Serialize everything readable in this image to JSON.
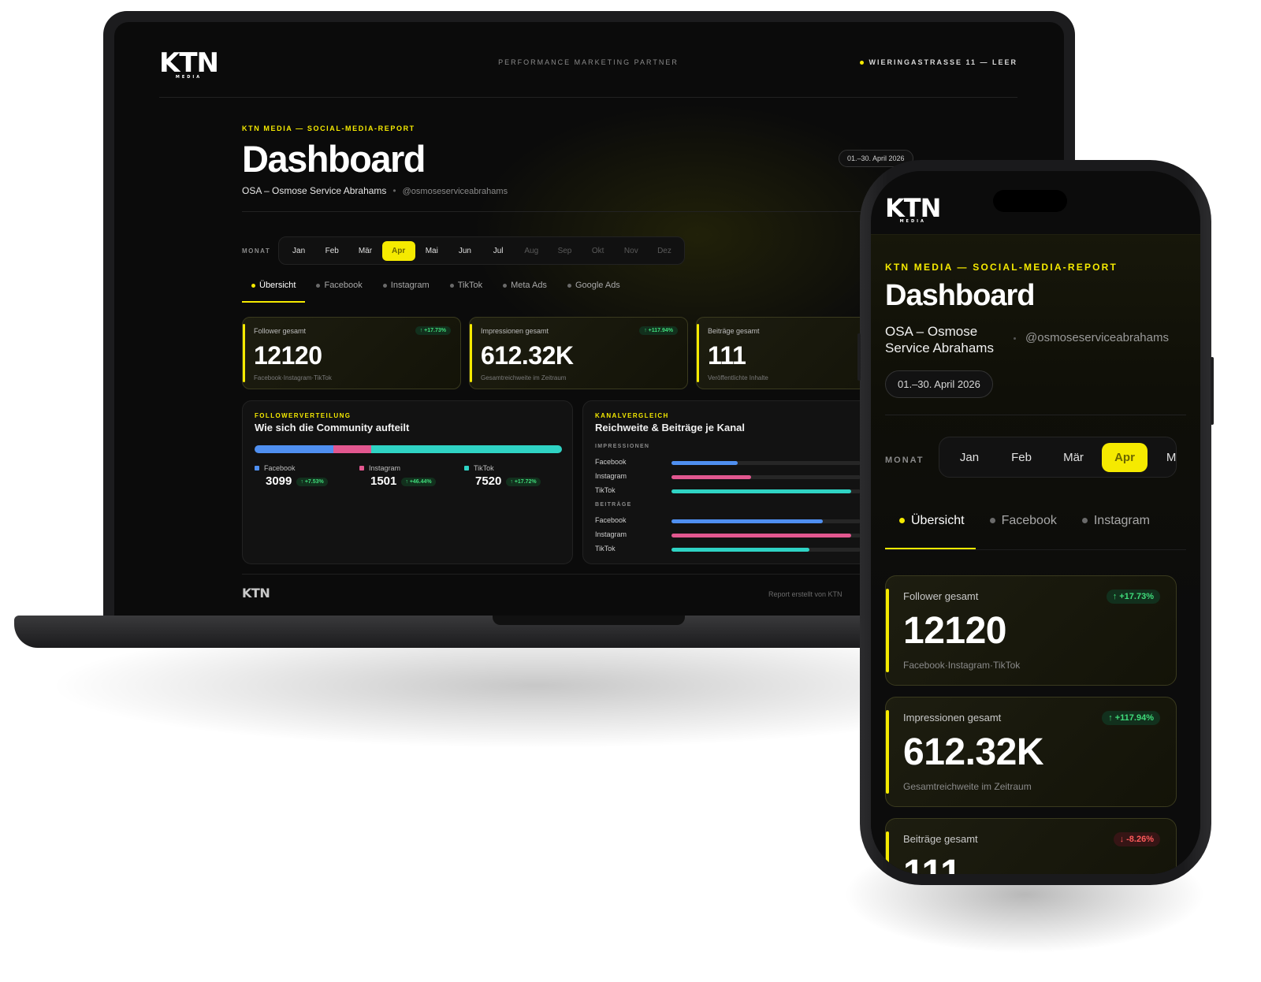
{
  "brand": {
    "logo": "KTN",
    "logo_sub": "MEDIA",
    "tagline": "PERFORMANCE MARKETING PARTNER",
    "address": "WIERINGASTRASSE 11 — LEER",
    "accent": "#f5ea00"
  },
  "report": {
    "kicker": "KTN MEDIA — SOCIAL-MEDIA-REPORT",
    "title": "Dashboard",
    "client": "OSA – Osmose Service Abrahams",
    "handle": "@osmoseserviceabrahams",
    "date_range": "01.–30. April 2026"
  },
  "months": {
    "label": "MONAT",
    "items": [
      "Jan",
      "Feb",
      "Mär",
      "Apr",
      "Mai",
      "Jun",
      "Jul",
      "Aug",
      "Sep",
      "Okt",
      "Nov",
      "Dez"
    ],
    "active": "Apr"
  },
  "tabs": [
    "Übersicht",
    "Facebook",
    "Instagram",
    "TikTok",
    "Meta Ads",
    "Google Ads"
  ],
  "kpis": [
    {
      "label": "Follower gesamt",
      "value": "12120",
      "change": "↑ +17.73%",
      "foot": "Facebook·Instagram·TikTok",
      "trend": "up"
    },
    {
      "label": "Impressionen gesamt",
      "value": "612.32K",
      "change": "↑ +117.94%",
      "foot": "Gesamtreichweite im Zeitraum",
      "trend": "up"
    },
    {
      "label": "Beiträge gesamt",
      "value": "111",
      "change": "↓ -8.26%",
      "foot": "Veröffentlichte Inhalte",
      "trend": "down"
    }
  ],
  "follower_distribution": {
    "kicker": "FOLLOWERVERTEILUNG",
    "title": "Wie sich die Community aufteilt",
    "items": [
      {
        "name": "Facebook",
        "value": "3099",
        "count": 3099,
        "change": "↑ +7.53%",
        "color": "#4f8ff0"
      },
      {
        "name": "Instagram",
        "value": "1501",
        "count": 1501,
        "change": "↑ +46.44%",
        "color": "#e2578f"
      },
      {
        "name": "TikTok",
        "value": "7520",
        "count": 7520,
        "change": "↑ +17.72%",
        "color": "#2fd3c4"
      }
    ]
  },
  "channel_comparison": {
    "kicker": "KANALVERGLEICH",
    "title": "Reichweite & Beiträge je Kanal",
    "sections": [
      {
        "label": "IMPRESSIONEN",
        "rows": [
          {
            "name": "Facebook",
            "share": 0.35,
            "color": "#4f8ff0"
          },
          {
            "name": "Instagram",
            "share": 0.42,
            "color": "#e2578f"
          },
          {
            "name": "TikTok",
            "share": 0.95,
            "color": "#2fd3c4"
          }
        ]
      },
      {
        "label": "BEITRÄGE",
        "rows": [
          {
            "name": "Facebook",
            "share": 0.8,
            "color": "#4f8ff0"
          },
          {
            "name": "Instagram",
            "share": 0.95,
            "color": "#e2578f"
          },
          {
            "name": "TikTok",
            "share": 0.73,
            "color": "#2fd3c4"
          }
        ]
      }
    ]
  },
  "footer": {
    "logo": "KTN",
    "text": "Report erstellt von KTN"
  }
}
